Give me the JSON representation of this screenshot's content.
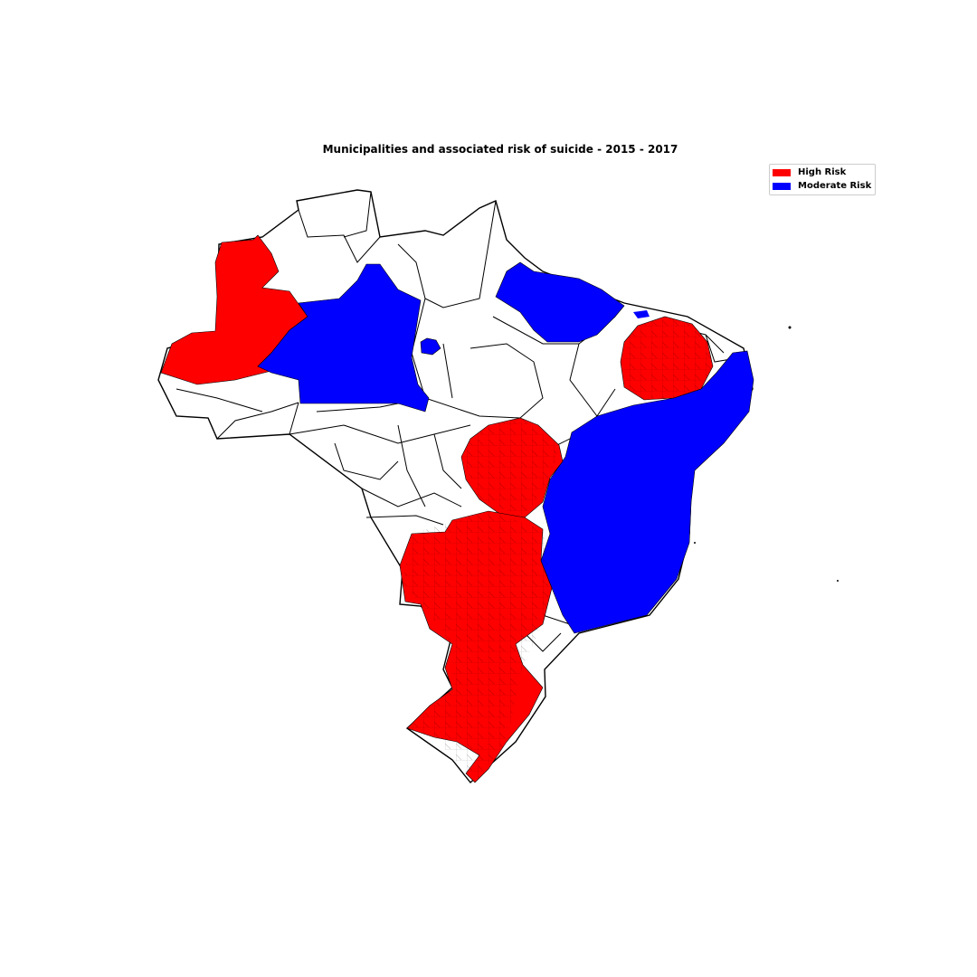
{
  "title": "Municipalities and associated risk of suicide - 2015 - 2017",
  "legend": {
    "items": [
      {
        "label": "High Risk",
        "color": "#ff0000"
      },
      {
        "label": "Moderate Risk",
        "color": "#0000ff"
      }
    ]
  },
  "colors": {
    "high_risk": "#ff0000",
    "moderate_risk": "#0000ff",
    "no_risk_fill": "#ffffff",
    "border": "#000000"
  },
  "regions": [
    {
      "name": "Acre / western Amazonas",
      "risk": "High Risk"
    },
    {
      "name": "Amazonas",
      "risk": "Moderate Risk"
    },
    {
      "name": "Amapá / northern Pará",
      "risk": "Moderate Risk"
    },
    {
      "name": "Ceará / Rio Grande do Norte",
      "risk": "High Risk"
    },
    {
      "name": "Pernambuco / Bahia / Minas Gerais / Espírito Santo",
      "risk": "Moderate Risk"
    },
    {
      "name": "Goiás",
      "risk": "High Risk"
    },
    {
      "name": "Mato Grosso do Sul / São Paulo / Paraná / Santa Catarina / Rio Grande do Sul",
      "risk": "High Risk"
    }
  ]
}
